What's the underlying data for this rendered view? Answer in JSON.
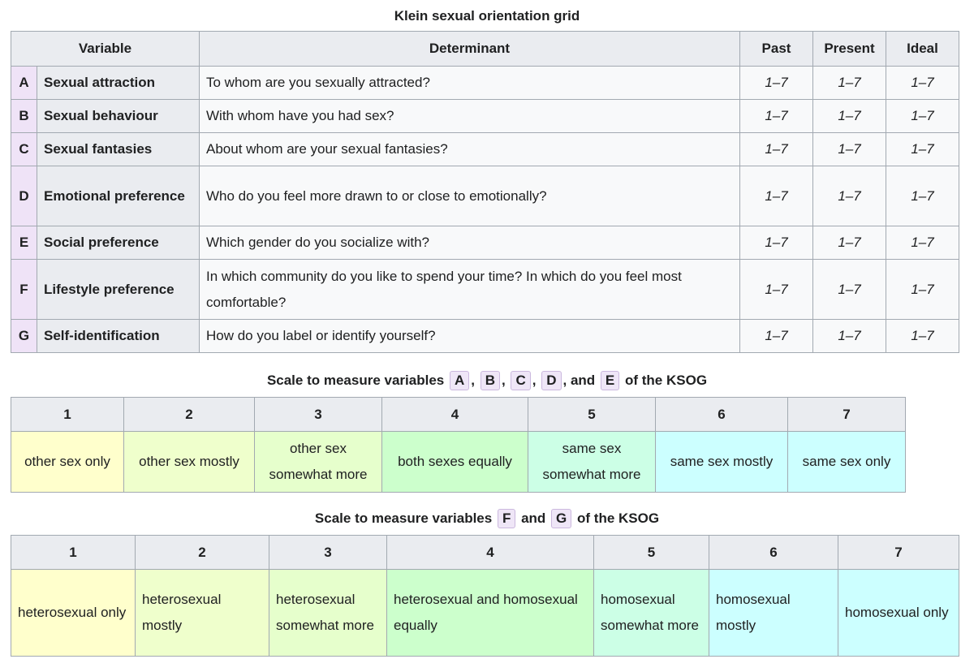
{
  "grid": {
    "caption": "Klein sexual orientation grid",
    "headers": {
      "variable": "Variable",
      "determinant": "Determinant",
      "past": "Past",
      "present": "Present",
      "ideal": "Ideal"
    },
    "rows": [
      {
        "letter": "A",
        "variable": "Sexual attraction",
        "determinant": "To whom are you sexually attracted?",
        "past": "1–7",
        "present": "1–7",
        "ideal": "1–7"
      },
      {
        "letter": "B",
        "variable": "Sexual behaviour",
        "determinant": "With whom have you had sex?",
        "past": "1–7",
        "present": "1–7",
        "ideal": "1–7"
      },
      {
        "letter": "C",
        "variable": "Sexual fantasies",
        "determinant": "About whom are your sexual fantasies?",
        "past": "1–7",
        "present": "1–7",
        "ideal": "1–7"
      },
      {
        "letter": "D",
        "variable": "Emotional preference",
        "determinant": "Who do you feel more drawn to or close to emotionally?",
        "past": "1–7",
        "present": "1–7",
        "ideal": "1–7"
      },
      {
        "letter": "E",
        "variable": "Social preference",
        "determinant": "Which gender do you socialize with?",
        "past": "1–7",
        "present": "1–7",
        "ideal": "1–7"
      },
      {
        "letter": "F",
        "variable": "Lifestyle preference",
        "determinant": "In which community do you like to spend your time? In which do you feel most comfortable?",
        "past": "1–7",
        "present": "1–7",
        "ideal": "1–7"
      },
      {
        "letter": "G",
        "variable": "Self-identification",
        "determinant": "How do you label or identify yourself?",
        "past": "1–7",
        "present": "1–7",
        "ideal": "1–7"
      }
    ]
  },
  "scale1": {
    "caption_prefix": "Scale to measure variables",
    "badges": [
      "A",
      "B",
      "C",
      "D",
      "E"
    ],
    "sep1": ",",
    "sep2": ",",
    "sep3": ",",
    "sep4": ", and",
    "caption_suffix": "of the KSOG",
    "numbers": [
      "1",
      "2",
      "3",
      "4",
      "5",
      "6",
      "7"
    ],
    "labels": [
      "other sex only",
      "other sex mostly",
      "other sex somewhat more",
      "both sexes equally",
      "same sex somewhat more",
      "same sex mostly",
      "same sex only"
    ]
  },
  "scale2": {
    "caption_prefix": "Scale to measure variables",
    "badges": [
      "F",
      "G"
    ],
    "sep": "and",
    "caption_suffix": "of the KSOG",
    "numbers": [
      "1",
      "2",
      "3",
      "4",
      "5",
      "6",
      "7"
    ],
    "labels": [
      "heterosexual only",
      "heterosexual mostly",
      "heterosexual somewhat more",
      "heterosexual and homosexual equally",
      "homosexual somewhat more",
      "homosexual mostly",
      "homosexual only"
    ]
  }
}
